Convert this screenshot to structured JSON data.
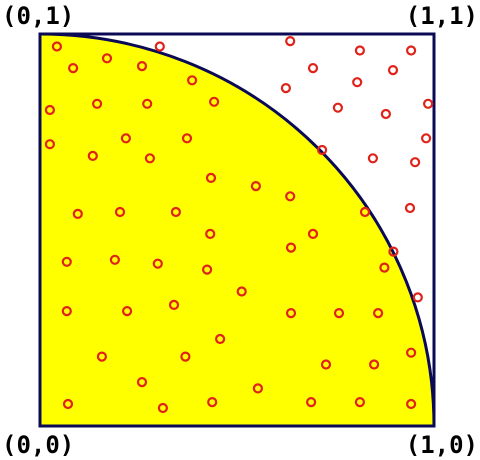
{
  "corners": {
    "top_left": "(0,1)",
    "top_right": "(1,1)",
    "bottom_left": "(0,0)",
    "bottom_right": "(1,0)"
  },
  "colors": {
    "border": "#0b0b55",
    "fill": "#ffff00",
    "point": "#e0231a",
    "background": "#ffffff"
  },
  "points": [
    [
      0.043,
      0.968
    ],
    [
      0.304,
      0.968
    ],
    [
      0.635,
      0.982
    ],
    [
      0.812,
      0.958
    ],
    [
      0.942,
      0.958
    ],
    [
      0.084,
      0.913
    ],
    [
      0.17,
      0.938
    ],
    [
      0.259,
      0.918
    ],
    [
      0.693,
      0.913
    ],
    [
      0.896,
      0.908
    ],
    [
      0.386,
      0.882
    ],
    [
      0.805,
      0.877
    ],
    [
      0.624,
      0.862
    ],
    [
      0.025,
      0.806
    ],
    [
      0.145,
      0.822
    ],
    [
      0.272,
      0.822
    ],
    [
      0.442,
      0.827
    ],
    [
      0.756,
      0.812
    ],
    [
      0.878,
      0.796
    ],
    [
      0.985,
      0.822
    ],
    [
      0.025,
      0.719
    ],
    [
      0.218,
      0.734
    ],
    [
      0.373,
      0.734
    ],
    [
      0.716,
      0.704
    ],
    [
      0.98,
      0.734
    ],
    [
      0.134,
      0.689
    ],
    [
      0.279,
      0.683
    ],
    [
      0.845,
      0.683
    ],
    [
      0.434,
      0.633
    ],
    [
      0.548,
      0.612
    ],
    [
      0.635,
      0.586
    ],
    [
      0.939,
      0.556
    ],
    [
      0.096,
      0.541
    ],
    [
      0.203,
      0.546
    ],
    [
      0.345,
      0.546
    ],
    [
      0.825,
      0.546
    ],
    [
      0.952,
      0.673
    ],
    [
      0.432,
      0.49
    ],
    [
      0.693,
      0.49
    ],
    [
      0.897,
      0.445
    ],
    [
      0.637,
      0.455
    ],
    [
      0.068,
      0.419
    ],
    [
      0.19,
      0.424
    ],
    [
      0.299,
      0.414
    ],
    [
      0.424,
      0.399
    ],
    [
      0.874,
      0.404
    ],
    [
      0.512,
      0.343
    ],
    [
      0.068,
      0.293
    ],
    [
      0.221,
      0.293
    ],
    [
      0.34,
      0.309
    ],
    [
      0.637,
      0.288
    ],
    [
      0.759,
      0.288
    ],
    [
      0.858,
      0.288
    ],
    [
      0.959,
      0.328
    ],
    [
      0.457,
      0.222
    ],
    [
      0.157,
      0.177
    ],
    [
      0.369,
      0.177
    ],
    [
      0.726,
      0.157
    ],
    [
      0.848,
      0.157
    ],
    [
      0.942,
      0.187
    ],
    [
      0.259,
      0.112
    ],
    [
      0.553,
      0.096
    ],
    [
      0.071,
      0.056
    ],
    [
      0.312,
      0.046
    ],
    [
      0.437,
      0.061
    ],
    [
      0.688,
      0.061
    ],
    [
      0.812,
      0.061
    ],
    [
      0.942,
      0.056
    ]
  ]
}
